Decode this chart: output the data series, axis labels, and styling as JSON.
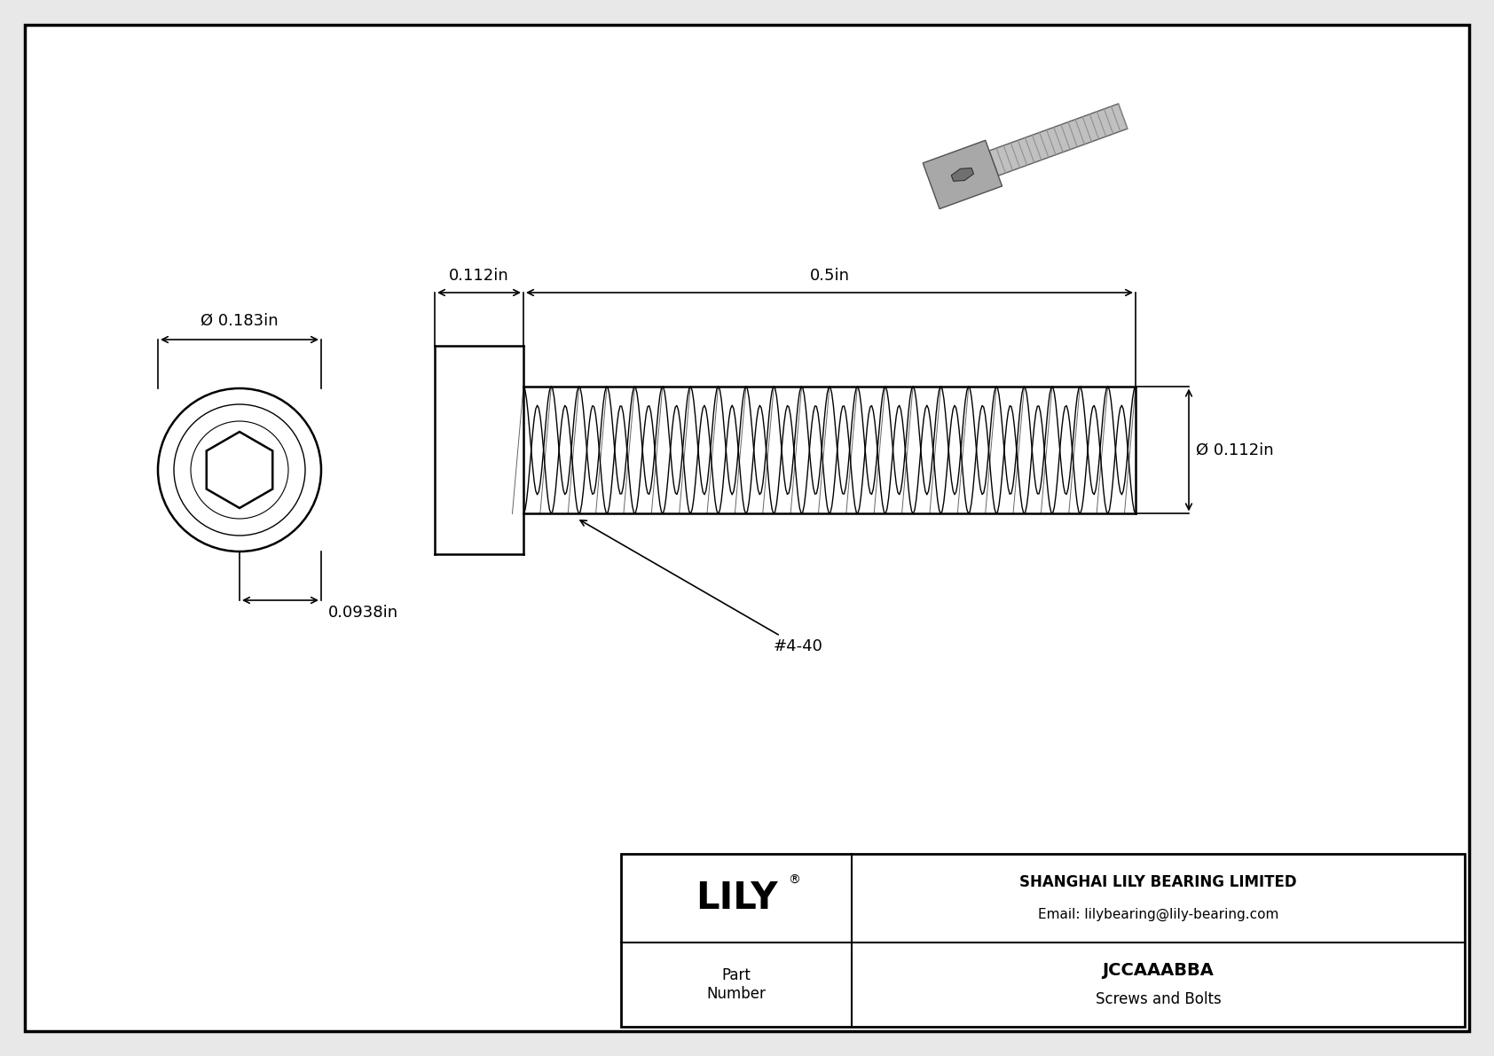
{
  "bg_color": "#e8e8e8",
  "drawing_bg": "#ffffff",
  "line_color": "#000000",
  "title": "JCCAAABBA",
  "subtitle": "Screws and Bolts",
  "company": "SHANGHAI LILY BEARING LIMITED",
  "email": "Email: lilybearing@lily-bearing.com",
  "part_label": "Part\nNumber",
  "dim_head_dia": "Ø 0.183in",
  "dim_head_height": "0.0938in",
  "dim_shaft_width": "0.112in",
  "dim_shaft_length": "0.5in",
  "dim_shaft_dia": "Ø 0.112in",
  "thread_label": "#4-40",
  "num_threads": 22,
  "fig_width": 16.84,
  "fig_height": 11.91,
  "dpi": 100
}
